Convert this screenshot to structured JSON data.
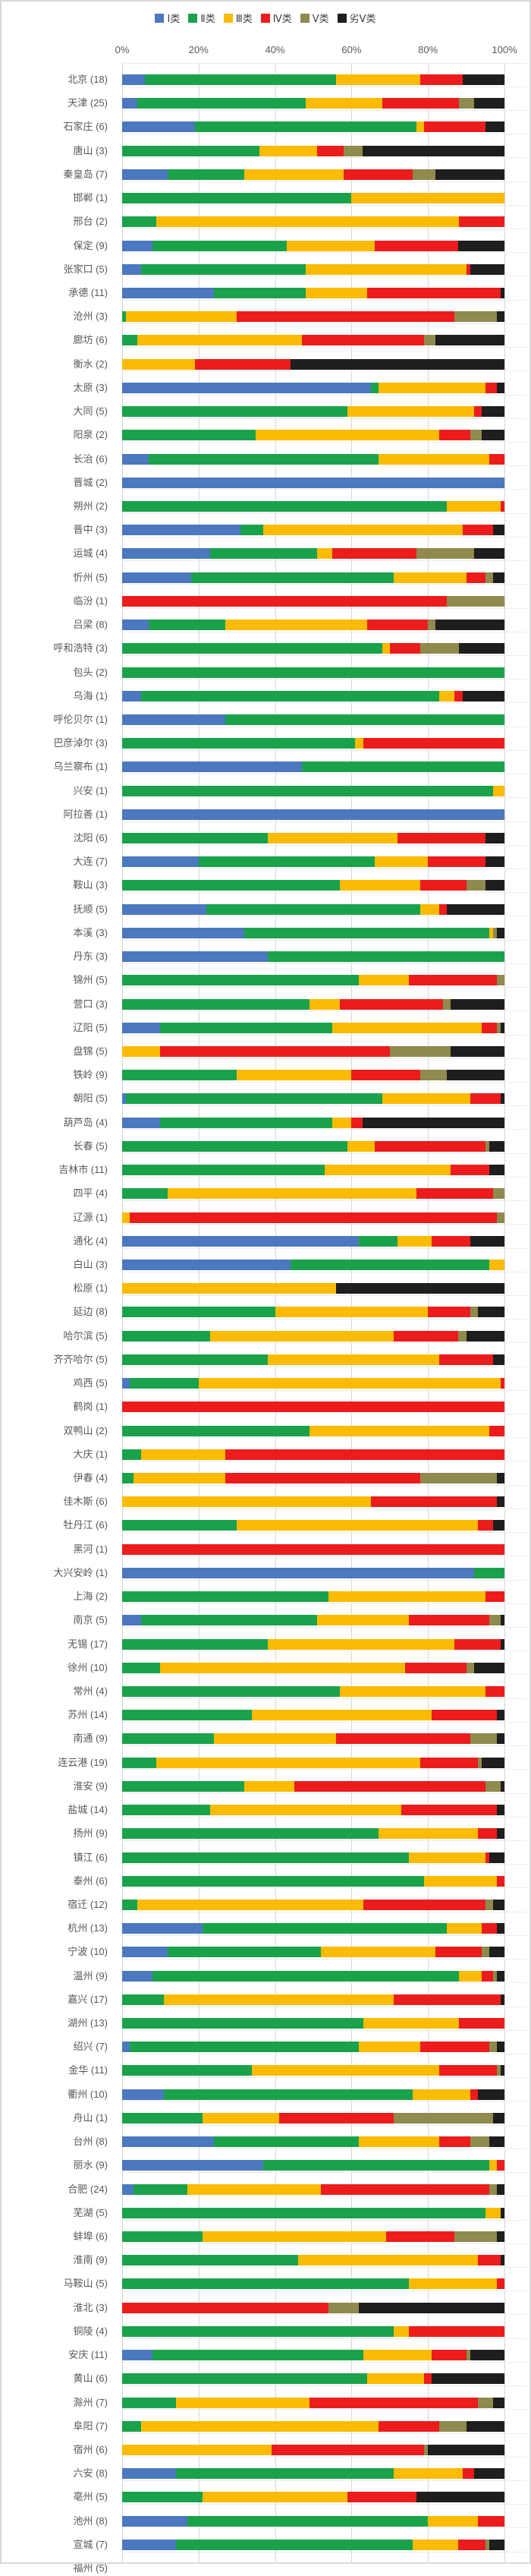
{
  "chart_data": {
    "type": "bar",
    "orientation": "horizontal-stacked-100pct",
    "title": "",
    "x_ticks": [
      "0%",
      "20%",
      "40%",
      "60%",
      "80%",
      "100%"
    ],
    "xlim": [
      0,
      100
    ],
    "grid": "on",
    "legend_position": "top-center",
    "legend": [
      {
        "label": "Ⅰ类",
        "color": "#4B78BE"
      },
      {
        "label": "Ⅱ类",
        "color": "#1AA24B"
      },
      {
        "label": "Ⅲ类",
        "color": "#FABB00"
      },
      {
        "label": "Ⅳ类",
        "color": "#EC1C1C"
      },
      {
        "label": "Ⅴ类",
        "color": "#8F8A4D"
      },
      {
        "label": "劣Ⅴ类",
        "color": "#1E1E1E"
      }
    ],
    "value_note": "values are percent of sections in each class, per city; city count of monitored sections shown in parentheses",
    "rows": [
      {
        "label": "北京 (18)",
        "values": [
          6,
          50,
          22,
          11,
          0,
          11
        ]
      },
      {
        "label": "天津 (25)",
        "values": [
          4,
          44,
          20,
          20,
          4,
          8
        ]
      },
      {
        "label": "石家庄 (6)",
        "values": [
          19,
          58,
          2,
          16,
          0,
          5
        ]
      },
      {
        "label": "唐山 (3)",
        "values": [
          0,
          36,
          15,
          7,
          5,
          37
        ]
      },
      {
        "label": "秦皇岛 (7)",
        "values": [
          12,
          20,
          26,
          18,
          6,
          18
        ]
      },
      {
        "label": "邯郸 (1)",
        "values": [
          0,
          60,
          40,
          0,
          0,
          0
        ]
      },
      {
        "label": "邢台 (2)",
        "values": [
          0,
          9,
          79,
          12,
          0,
          0
        ]
      },
      {
        "label": "保定 (9)",
        "values": [
          8,
          35,
          23,
          22,
          0,
          12
        ]
      },
      {
        "label": "张家口 (5)",
        "values": [
          5,
          43,
          42,
          1,
          0,
          9
        ]
      },
      {
        "label": "承德 (11)",
        "values": [
          24,
          24,
          16,
          35,
          0,
          1
        ]
      },
      {
        "label": "沧州 (3)",
        "values": [
          0,
          1,
          29,
          57,
          11,
          2
        ]
      },
      {
        "label": "廊坊 (6)",
        "values": [
          0,
          4,
          43,
          32,
          3,
          18
        ]
      },
      {
        "label": "衡水 (2)",
        "values": [
          0,
          0,
          19,
          25,
          0,
          56
        ]
      },
      {
        "label": "太原 (3)",
        "values": [
          65,
          2,
          28,
          3,
          0,
          2
        ]
      },
      {
        "label": "大同 (5)",
        "values": [
          0,
          59,
          33,
          2,
          0,
          6
        ]
      },
      {
        "label": "阳泉 (2)",
        "values": [
          0,
          35,
          48,
          8,
          3,
          6
        ]
      },
      {
        "label": "长治 (6)",
        "values": [
          7,
          60,
          29,
          4,
          0,
          0
        ]
      },
      {
        "label": "晋城 (2)",
        "values": [
          100,
          0,
          0,
          0,
          0,
          0
        ]
      },
      {
        "label": "朔州 (2)",
        "values": [
          0,
          85,
          14,
          1,
          0,
          0
        ]
      },
      {
        "label": "晋中 (3)",
        "values": [
          31,
          6,
          52,
          8,
          0,
          3
        ]
      },
      {
        "label": "运城 (4)",
        "values": [
          23,
          28,
          4,
          22,
          15,
          8
        ]
      },
      {
        "label": "忻州 (5)",
        "values": [
          18,
          53,
          19,
          5,
          2,
          3
        ]
      },
      {
        "label": "临汾 (1)",
        "values": [
          0,
          0,
          0,
          85,
          15,
          0
        ]
      },
      {
        "label": "吕梁 (8)",
        "values": [
          7,
          20,
          37,
          16,
          2,
          18
        ]
      },
      {
        "label": "呼和浩特 (3)",
        "values": [
          0,
          68,
          2,
          8,
          10,
          12
        ]
      },
      {
        "label": "包头 (2)",
        "values": [
          0,
          100,
          0,
          0,
          0,
          0
        ]
      },
      {
        "label": "乌海 (1)",
        "values": [
          5,
          78,
          4,
          2,
          0,
          11
        ]
      },
      {
        "label": "呼伦贝尔 (1)",
        "values": [
          27,
          73,
          0,
          0,
          0,
          0
        ]
      },
      {
        "label": "巴彦淖尔 (3)",
        "values": [
          0,
          61,
          2,
          37,
          0,
          0
        ]
      },
      {
        "label": "乌兰察布 (1)",
        "values": [
          47,
          53,
          0,
          0,
          0,
          0
        ]
      },
      {
        "label": "兴安 (1)",
        "values": [
          0,
          97,
          3,
          0,
          0,
          0
        ]
      },
      {
        "label": "阿拉善 (1)",
        "values": [
          100,
          0,
          0,
          0,
          0,
          0
        ]
      },
      {
        "label": "沈阳 (6)",
        "values": [
          0,
          38,
          34,
          23,
          0,
          5
        ]
      },
      {
        "label": "大连 (7)",
        "values": [
          20,
          46,
          14,
          15,
          0,
          5
        ]
      },
      {
        "label": "鞍山 (3)",
        "values": [
          0,
          57,
          21,
          12,
          5,
          5
        ]
      },
      {
        "label": "抚顺 (5)",
        "values": [
          22,
          56,
          5,
          2,
          0,
          15
        ]
      },
      {
        "label": "本溪 (3)",
        "values": [
          32,
          64,
          1,
          0,
          1,
          2
        ]
      },
      {
        "label": "丹东 (3)",
        "values": [
          38,
          62,
          0,
          0,
          0,
          0
        ]
      },
      {
        "label": "锦州 (5)",
        "values": [
          0,
          62,
          13,
          23,
          2,
          0
        ]
      },
      {
        "label": "营口 (3)",
        "values": [
          0,
          49,
          8,
          27,
          2,
          14
        ]
      },
      {
        "label": "辽阳 (5)",
        "values": [
          10,
          45,
          39,
          4,
          1,
          1
        ]
      },
      {
        "label": "盘锦 (5)",
        "values": [
          0,
          0,
          10,
          60,
          16,
          14
        ]
      },
      {
        "label": "铁岭 (9)",
        "values": [
          0,
          30,
          30,
          18,
          7,
          15
        ]
      },
      {
        "label": "朝阳 (5)",
        "values": [
          1,
          67,
          23,
          8,
          0,
          1
        ]
      },
      {
        "label": "葫芦岛 (4)",
        "values": [
          10,
          45,
          5,
          3,
          0,
          37
        ]
      },
      {
        "label": "长春 (5)",
        "values": [
          0,
          59,
          7,
          29,
          1,
          4
        ]
      },
      {
        "label": "吉林市 (11)",
        "values": [
          0,
          53,
          33,
          10,
          0,
          4
        ]
      },
      {
        "label": "四平 (4)",
        "values": [
          0,
          12,
          65,
          20,
          3,
          0
        ]
      },
      {
        "label": "辽源 (1)",
        "values": [
          0,
          0,
          2,
          96,
          2,
          0
        ]
      },
      {
        "label": "通化 (4)",
        "values": [
          62,
          10,
          9,
          10,
          0,
          9
        ]
      },
      {
        "label": "白山 (3)",
        "values": [
          44,
          52,
          4,
          0,
          0,
          0
        ]
      },
      {
        "label": "松原 (1)",
        "values": [
          0,
          0,
          56,
          0,
          0,
          44
        ]
      },
      {
        "label": "延边 (8)",
        "values": [
          0,
          40,
          40,
          11,
          2,
          7
        ]
      },
      {
        "label": "哈尔滨 (5)",
        "values": [
          0,
          23,
          48,
          17,
          2,
          10
        ]
      },
      {
        "label": "齐齐哈尔 (5)",
        "values": [
          0,
          38,
          45,
          14,
          0,
          3
        ]
      },
      {
        "label": "鸡西 (5)",
        "values": [
          2,
          18,
          79,
          1,
          0,
          0
        ]
      },
      {
        "label": "鹤岗 (1)",
        "values": [
          0,
          0,
          0,
          100,
          0,
          0
        ]
      },
      {
        "label": "双鸭山 (2)",
        "values": [
          0,
          49,
          47,
          4,
          0,
          0
        ]
      },
      {
        "label": "大庆 (1)",
        "values": [
          0,
          5,
          22,
          73,
          0,
          0
        ]
      },
      {
        "label": "伊春 (4)",
        "values": [
          0,
          3,
          24,
          51,
          20,
          2
        ]
      },
      {
        "label": "佳木斯 (6)",
        "values": [
          0,
          0,
          65,
          33,
          0,
          2
        ]
      },
      {
        "label": "牡丹江 (6)",
        "values": [
          0,
          30,
          63,
          4,
          0,
          3
        ]
      },
      {
        "label": "黑河 (1)",
        "values": [
          0,
          0,
          0,
          100,
          0,
          0
        ]
      },
      {
        "label": "大兴安岭 (1)",
        "values": [
          92,
          8,
          0,
          0,
          0,
          0
        ]
      },
      {
        "label": "上海 (2)",
        "values": [
          0,
          54,
          41,
          5,
          0,
          0
        ]
      },
      {
        "label": "南京 (5)",
        "values": [
          5,
          46,
          24,
          21,
          3,
          1
        ]
      },
      {
        "label": "无锡 (17)",
        "values": [
          0,
          38,
          49,
          12,
          0,
          1
        ]
      },
      {
        "label": "徐州 (10)",
        "values": [
          0,
          10,
          64,
          16,
          2,
          8
        ]
      },
      {
        "label": "常州 (4)",
        "values": [
          0,
          57,
          38,
          5,
          0,
          0
        ]
      },
      {
        "label": "苏州 (14)",
        "values": [
          0,
          34,
          47,
          17,
          0,
          2
        ]
      },
      {
        "label": "南通 (9)",
        "values": [
          0,
          24,
          32,
          35,
          7,
          2
        ]
      },
      {
        "label": "连云港 (19)",
        "values": [
          0,
          9,
          69,
          15,
          1,
          6
        ]
      },
      {
        "label": "淮安 (9)",
        "values": [
          0,
          32,
          13,
          50,
          4,
          1
        ]
      },
      {
        "label": "盐城 (14)",
        "values": [
          0,
          23,
          50,
          25,
          0,
          2
        ]
      },
      {
        "label": "扬州 (9)",
        "values": [
          0,
          67,
          26,
          5,
          0,
          2
        ]
      },
      {
        "label": "镇江 (6)",
        "values": [
          0,
          75,
          20,
          1,
          0,
          4
        ]
      },
      {
        "label": "泰州 (6)",
        "values": [
          0,
          79,
          19,
          2,
          0,
          0
        ]
      },
      {
        "label": "宿迁 (12)",
        "values": [
          0,
          4,
          59,
          32,
          2,
          3
        ]
      },
      {
        "label": "杭州 (13)",
        "values": [
          21,
          64,
          9,
          4,
          0,
          2
        ]
      },
      {
        "label": "宁波 (10)",
        "values": [
          12,
          40,
          30,
          12,
          2,
          4
        ]
      },
      {
        "label": "温州 (9)",
        "values": [
          8,
          80,
          6,
          3,
          1,
          2
        ]
      },
      {
        "label": "嘉兴 (17)",
        "values": [
          0,
          11,
          60,
          28,
          0,
          1
        ]
      },
      {
        "label": "湖州 (13)",
        "values": [
          0,
          63,
          25,
          12,
          0,
          0
        ]
      },
      {
        "label": "绍兴 (7)",
        "values": [
          2,
          60,
          16,
          18,
          2,
          2
        ]
      },
      {
        "label": "金华 (11)",
        "values": [
          0,
          34,
          49,
          15,
          1,
          1
        ]
      },
      {
        "label": "衢州 (10)",
        "values": [
          11,
          65,
          15,
          2,
          0,
          7
        ]
      },
      {
        "label": "舟山 (1)",
        "values": [
          0,
          21,
          20,
          30,
          26,
          3
        ]
      },
      {
        "label": "台州 (8)",
        "values": [
          24,
          38,
          21,
          8,
          5,
          4
        ]
      },
      {
        "label": "丽水 (9)",
        "values": [
          37,
          59,
          2,
          2,
          0,
          0
        ]
      },
      {
        "label": "合肥 (24)",
        "values": [
          3,
          14,
          35,
          44,
          2,
          2
        ]
      },
      {
        "label": "芜湖 (5)",
        "values": [
          0,
          95,
          4,
          0,
          0,
          1
        ]
      },
      {
        "label": "蚌埠 (6)",
        "values": [
          0,
          21,
          48,
          18,
          11,
          2
        ]
      },
      {
        "label": "淮南 (9)",
        "values": [
          0,
          46,
          47,
          6,
          0,
          1
        ]
      },
      {
        "label": "马鞍山 (5)",
        "values": [
          0,
          75,
          23,
          2,
          0,
          0
        ]
      },
      {
        "label": "淮北 (3)",
        "values": [
          0,
          0,
          0,
          54,
          8,
          38
        ]
      },
      {
        "label": "铜陵 (4)",
        "values": [
          0,
          71,
          4,
          25,
          0,
          0
        ]
      },
      {
        "label": "安庆 (11)",
        "values": [
          8,
          55,
          18,
          9,
          1,
          9
        ]
      },
      {
        "label": "黄山 (6)",
        "values": [
          0,
          64,
          15,
          2,
          0,
          19
        ]
      },
      {
        "label": "滁州 (7)",
        "values": [
          0,
          14,
          35,
          44,
          4,
          3
        ]
      },
      {
        "label": "阜阳 (7)",
        "values": [
          0,
          5,
          62,
          16,
          7,
          10
        ]
      },
      {
        "label": "宿州 (6)",
        "values": [
          0,
          0,
          39,
          40,
          1,
          20
        ]
      },
      {
        "label": "六安 (8)",
        "values": [
          14,
          57,
          18,
          3,
          0,
          8
        ]
      },
      {
        "label": "亳州 (5)",
        "values": [
          0,
          21,
          38,
          18,
          0,
          23
        ]
      },
      {
        "label": "池州 (8)",
        "values": [
          17,
          63,
          13,
          7,
          0,
          0
        ]
      },
      {
        "label": "宣城 (7)",
        "values": [
          14,
          62,
          12,
          7,
          1,
          4
        ]
      }
    ],
    "clipped_row": {
      "label": "福州 (5)"
    }
  }
}
